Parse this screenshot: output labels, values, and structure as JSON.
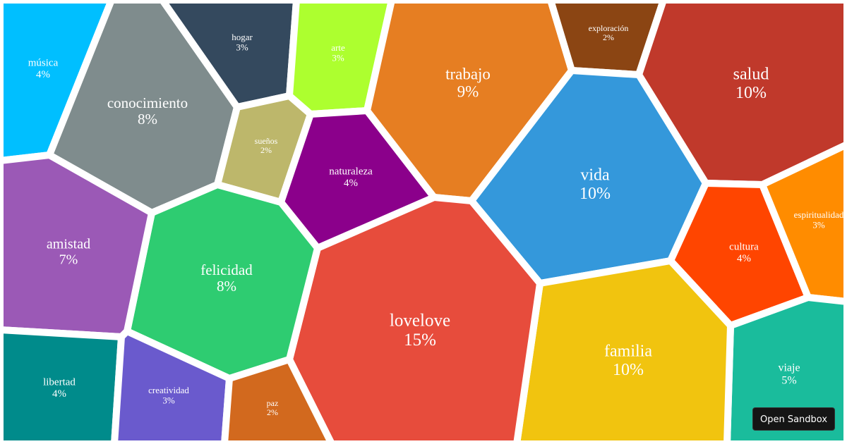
{
  "chart_data": {
    "type": "voronoi-treemap",
    "unit": "%",
    "cells": [
      {
        "name": "música",
        "value": 4,
        "color": "#00BFFF"
      },
      {
        "name": "conocimiento",
        "value": 8,
        "color": "#7F8C8D"
      },
      {
        "name": "hogar",
        "value": 3,
        "color": "#34495E"
      },
      {
        "name": "arte",
        "value": 3,
        "color": "#ADFF2F"
      },
      {
        "name": "sueños",
        "value": 2,
        "color": "#BDB76B"
      },
      {
        "name": "naturaleza",
        "value": 4,
        "color": "#8B008B"
      },
      {
        "name": "trabajo",
        "value": 9,
        "color": "#E67E22"
      },
      {
        "name": "exploración",
        "value": 2,
        "color": "#8B4513"
      },
      {
        "name": "salud",
        "value": 10,
        "color": "#C0392B"
      },
      {
        "name": "vida",
        "value": 10,
        "color": "#3498DB"
      },
      {
        "name": "cultura",
        "value": 4,
        "color": "#FF4500"
      },
      {
        "name": "espiritualidad",
        "value": 3,
        "color": "#FF8C00"
      },
      {
        "name": "viaje",
        "value": 5,
        "color": "#1ABC9C"
      },
      {
        "name": "familia",
        "value": 10,
        "color": "#F1C40F"
      },
      {
        "name": "lovelove",
        "value": 15,
        "color": "#E74C3C"
      },
      {
        "name": "felicidad",
        "value": 8,
        "color": "#2ECC71"
      },
      {
        "name": "amistad",
        "value": 7,
        "color": "#9B59B6"
      },
      {
        "name": "libertad",
        "value": 4,
        "color": "#008B8B"
      },
      {
        "name": "creatividad",
        "value": 3,
        "color": "#6A5ACD"
      },
      {
        "name": "paz",
        "value": 2,
        "color": "#D2691E"
      }
    ]
  },
  "sandbox_button": {
    "label": "Open Sandbox"
  }
}
